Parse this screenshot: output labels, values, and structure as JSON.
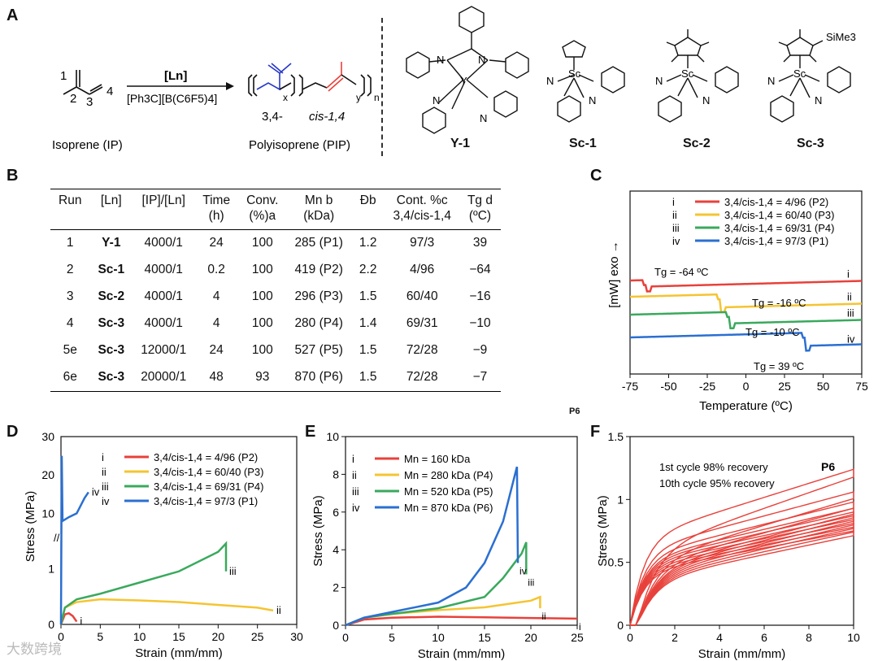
{
  "panels": {
    "A": "A",
    "B": "B",
    "C": "C",
    "D": "D",
    "E": "E",
    "F": "F"
  },
  "scheme": {
    "monomer_numbers": [
      "1",
      "2",
      "3",
      "4"
    ],
    "catalyst": "[Ln]",
    "cocatalyst": "[Ph3C][B(C6F5)4]",
    "monomer_name": "Isoprene (IP)",
    "polymer_name": "Polyisoprene (PIP)",
    "unit_34": "3,4-",
    "unit_cis": "cis-1,4",
    "sub_x": "x",
    "sub_y": "y",
    "sub_n": "n",
    "complexes": [
      "Y-1",
      "Sc-1",
      "Sc-2",
      "Sc-3"
    ],
    "atom_labels": {
      "Y": "Y",
      "Sc": "Sc",
      "N": "N",
      "SiMe3": "SiMe3"
    }
  },
  "table": {
    "headers": [
      "Run",
      "[Ln]",
      "[IP]/[Ln]",
      "Time\n(h)",
      "Conv.\n(%)a",
      "Mn b\n(kDa)",
      "Đb",
      "Cont. %c\n3,4/cis-1,4",
      "Tg d\n(ºC)"
    ],
    "rows": [
      [
        "1",
        "Y-1",
        "4000/1",
        "24",
        "100",
        "285 (P1)",
        "1.2",
        "97/3",
        "39"
      ],
      [
        "2",
        "Sc-1",
        "4000/1",
        "0.2",
        "100",
        "419 (P2)",
        "2.2",
        "4/96",
        "−64"
      ],
      [
        "3",
        "Sc-2",
        "4000/1",
        "4",
        "100",
        "296 (P3)",
        "1.5",
        "60/40",
        "−16"
      ],
      [
        "4",
        "Sc-3",
        "4000/1",
        "4",
        "100",
        "280 (P4)",
        "1.4",
        "69/31",
        "−10"
      ],
      [
        "5e",
        "Sc-3",
        "12000/1",
        "24",
        "100",
        "527 (P5)",
        "1.5",
        "72/28",
        "−9"
      ],
      [
        "6e",
        "Sc-3",
        "20000/1",
        "48",
        "93",
        "870 (P6)",
        "1.5",
        "72/28",
        "−7"
      ]
    ]
  },
  "chart_data": [
    {
      "id": "C",
      "type": "line",
      "xlabel": "Temperature (ºC)",
      "ylabel": "[mW] exo →",
      "xlim": [
        -75,
        75
      ],
      "xticks": [
        -75,
        -50,
        -25,
        0,
        25,
        50,
        75
      ],
      "legend": [
        {
          "key": "i",
          "label": "3,4/cis-1,4 = 4/96 (P2)",
          "color": "#e8413b"
        },
        {
          "key": "ii",
          "label": "3,4/cis-1,4 = 60/40 (P3)",
          "color": "#f5c431"
        },
        {
          "key": "iii",
          "label": "3,4/cis-1,4 = 69/31 (P4)",
          "color": "#3aa95d"
        },
        {
          "key": "iv",
          "label": "3,4/cis-1,4 = 97/3 (P1)",
          "color": "#2b6fd1"
        }
      ],
      "annotations": [
        "Tg = -64 ºC",
        "Tg = -16 ºC",
        "Tg = -10 ºC",
        "Tg = 39 ºC"
      ],
      "curve_labels": [
        "i",
        "ii",
        "iii",
        "iv"
      ],
      "tg_values": [
        -64,
        -16,
        -10,
        39
      ]
    },
    {
      "id": "D",
      "type": "line",
      "xlabel": "Strain (mm/mm)",
      "ylabel": "Stress (MPa)",
      "xlim": [
        0,
        30
      ],
      "xticks": [
        0,
        5,
        10,
        15,
        20,
        25,
        30
      ],
      "yticks_low": [
        0,
        1
      ],
      "yticks_high": [
        10,
        20,
        30
      ],
      "legend": [
        {
          "key": "i",
          "label": "3,4/cis-1,4 = 4/96 (P2)",
          "color": "#e8413b"
        },
        {
          "key": "ii",
          "label": "3,4/cis-1,4 = 60/40 (P3)",
          "color": "#f5c431"
        },
        {
          "key": "iii",
          "label": "3,4/cis-1,4 = 69/31 (P4)",
          "color": "#3aa95d"
        },
        {
          "key": "iv",
          "label": "3,4/cis-1,4 = 97/3 (P1)",
          "color": "#2b6fd1"
        }
      ],
      "curve_labels": [
        "i",
        "ii",
        "iii",
        "iv"
      ],
      "series": [
        {
          "key": "i",
          "x": [
            0,
            0.5,
            1,
            1.5,
            2
          ],
          "y": [
            0,
            0.18,
            0.2,
            0.15,
            0.05
          ]
        },
        {
          "key": "ii",
          "x": [
            0,
            0.5,
            2,
            5,
            10,
            15,
            20,
            25,
            27
          ],
          "y": [
            0,
            0.3,
            0.4,
            0.45,
            0.43,
            0.4,
            0.35,
            0.3,
            0.25
          ]
        },
        {
          "key": "iii",
          "x": [
            0,
            0.5,
            2,
            5,
            10,
            15,
            20,
            21,
            21
          ],
          "y": [
            0,
            0.3,
            0.45,
            0.55,
            0.75,
            0.95,
            1.3,
            1.45,
            0.95
          ]
        },
        {
          "key": "iv",
          "x": [
            0,
            0.1,
            0.2,
            1,
            2,
            3,
            3.5
          ],
          "y": [
            0,
            25,
            8,
            9,
            10,
            14,
            15.5
          ]
        }
      ]
    },
    {
      "id": "E",
      "type": "line",
      "xlabel": "Strain (mm/mm)",
      "ylabel": "Stress (MPa)",
      "xlim": [
        0,
        25
      ],
      "ylim": [
        0,
        10
      ],
      "xticks": [
        0,
        5,
        10,
        15,
        20,
        25
      ],
      "yticks": [
        0,
        2,
        4,
        6,
        8,
        10
      ],
      "legend": [
        {
          "key": "i",
          "label": "Mn = 160 kDa",
          "color": "#e8413b"
        },
        {
          "key": "ii",
          "label": "Mn = 280 kDa (P4)",
          "color": "#f5c431"
        },
        {
          "key": "iii",
          "label": "Mn = 520 kDa (P5)",
          "color": "#3aa95d"
        },
        {
          "key": "iv",
          "label": "Mn = 870 kDa (P6)",
          "color": "#2b6fd1"
        }
      ],
      "curve_labels": [
        "i",
        "ii",
        "iii",
        "iv"
      ],
      "series": [
        {
          "key": "i",
          "x": [
            0,
            2,
            5,
            10,
            15,
            20,
            25
          ],
          "y": [
            0,
            0.3,
            0.4,
            0.45,
            0.42,
            0.38,
            0.35
          ]
        },
        {
          "key": "ii",
          "x": [
            0,
            2,
            5,
            10,
            15,
            20,
            21,
            21
          ],
          "y": [
            0,
            0.4,
            0.6,
            0.8,
            0.95,
            1.3,
            1.5,
            0.9
          ]
        },
        {
          "key": "iii",
          "x": [
            0,
            2,
            5,
            10,
            15,
            17,
            19,
            19.5,
            19.5
          ],
          "y": [
            0,
            0.4,
            0.6,
            0.9,
            1.5,
            2.5,
            3.8,
            4.4,
            2.7
          ]
        },
        {
          "key": "iv",
          "x": [
            0,
            2,
            5,
            10,
            13,
            15,
            17,
            18.5,
            18.6
          ],
          "y": [
            0,
            0.4,
            0.7,
            1.2,
            2.0,
            3.3,
            5.5,
            8.4,
            3.3
          ]
        }
      ]
    },
    {
      "id": "F",
      "type": "line",
      "xlabel": "Strain (mm/mm)",
      "ylabel": "Stress (MPa)",
      "xlim": [
        0,
        10
      ],
      "ylim": [
        0,
        1.5
      ],
      "xticks": [
        0,
        2,
        4,
        6,
        8,
        10
      ],
      "yticks": [
        0,
        0.5,
        1,
        1.5
      ],
      "ytick_labels": [
        "0",
        "0.5",
        "1",
        "1.5"
      ],
      "annotations": [
        "1st cycle 98% recovery",
        "10th cycle 95% recovery"
      ],
      "tag": "P6",
      "cycles": 10,
      "max_stress": [
        1.24,
        1.06,
        0.98,
        0.93,
        0.9,
        0.87,
        0.84,
        0.81,
        0.78,
        0.75
      ]
    }
  ],
  "stray_tag": "P6",
  "watermark": "大数跨境"
}
